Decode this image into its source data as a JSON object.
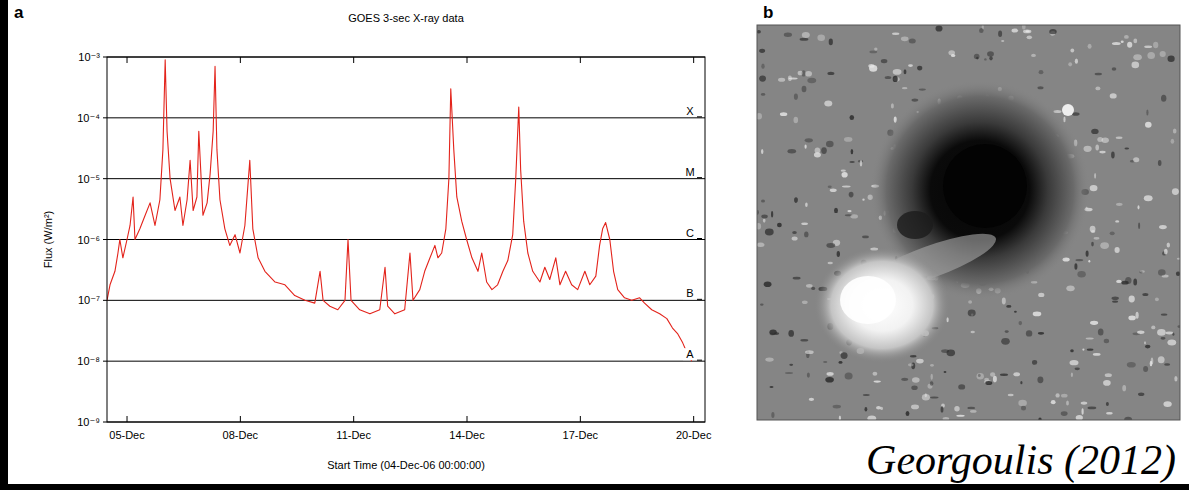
{
  "chart_data": {
    "type": "line",
    "title": "GOES 3-sec X-ray data",
    "x_label": "Start Time (04-Dec-06 00:00:00)",
    "y_label": "Flux (W/m²)",
    "color": "#e3231b",
    "log": "y",
    "grid": true,
    "xlim": [
      0.47,
      16.3
    ],
    "xticks": [
      {
        "value": 1,
        "label": "05-Dec"
      },
      {
        "value": 4,
        "label": "08-Dec"
      },
      {
        "value": 7,
        "label": "11-Dec"
      },
      {
        "value": 10,
        "label": "14-Dec"
      },
      {
        "value": 13,
        "label": "17-Dec"
      },
      {
        "value": 16,
        "label": "20-Dec"
      }
    ],
    "ylim": [
      1e-09,
      0.001
    ],
    "yticks": [
      {
        "value": 1e-09,
        "label": "10⁻⁹"
      },
      {
        "value": 1e-08,
        "label": "10⁻⁸"
      },
      {
        "value": 1e-07,
        "label": "10⁻⁷"
      },
      {
        "value": 1e-06,
        "label": "10⁻⁶"
      },
      {
        "value": 1e-05,
        "label": "10⁻⁵"
      },
      {
        "value": 0.0001,
        "label": "10⁻⁴"
      },
      {
        "value": 0.001,
        "label": "10⁻³"
      }
    ],
    "annotations": [
      {
        "value": 0.0001,
        "label": "X"
      },
      {
        "value": 1e-05,
        "label": "M"
      },
      {
        "value": 1e-06,
        "label": "C"
      },
      {
        "value": 1e-07,
        "label": "B"
      },
      {
        "value": 1e-08,
        "label": "A"
      }
    ],
    "x": [
      0.47,
      0.55,
      0.68,
      0.76,
      0.81,
      0.89,
      1.0,
      1.08,
      1.16,
      1.21,
      1.34,
      1.48,
      1.61,
      1.74,
      1.87,
      1.95,
      2.01,
      2.06,
      2.14,
      2.27,
      2.4,
      2.48,
      2.59,
      2.67,
      2.75,
      2.85,
      2.9,
      3.01,
      3.12,
      3.2,
      3.28,
      3.33,
      3.38,
      3.46,
      3.59,
      3.72,
      3.86,
      3.99,
      4.12,
      4.25,
      4.33,
      4.47,
      4.65,
      4.92,
      5.18,
      5.44,
      5.71,
      5.97,
      6.11,
      6.19,
      6.37,
      6.58,
      6.77,
      6.85,
      6.93,
      7.16,
      7.43,
      7.69,
      7.83,
      7.9,
      8.09,
      8.35,
      8.49,
      8.57,
      8.75,
      8.88,
      9.02,
      9.15,
      9.23,
      9.33,
      9.44,
      9.52,
      9.57,
      9.65,
      9.73,
      9.86,
      9.99,
      10.13,
      10.29,
      10.39,
      10.52,
      10.66,
      10.81,
      10.95,
      11.08,
      11.21,
      11.29,
      11.37,
      11.42,
      11.5,
      11.61,
      11.74,
      11.93,
      12.06,
      12.19,
      12.35,
      12.46,
      12.61,
      12.77,
      12.93,
      13.12,
      13.25,
      13.41,
      13.51,
      13.59,
      13.67,
      13.78,
      13.88,
      13.99,
      14.17,
      14.36,
      14.57,
      14.7,
      14.89,
      15.1,
      15.29,
      15.44,
      15.58,
      15.71,
      15.84,
      15.95
    ],
    "values": [
      1e-07,
      1.8e-07,
      3e-07,
      6e-07,
      1e-06,
      5e-07,
      1e-06,
      1.7e-06,
      5e-06,
      1e-06,
      1.5e-06,
      2.5e-06,
      4e-06,
      1.7e-06,
      4.5e-06,
      3e-05,
      0.0009,
      6e-05,
      1e-05,
      3e-06,
      5e-06,
      1.7e-06,
      4.5e-06,
      2e-05,
      3e-06,
      5e-06,
      6e-05,
      2.5e-06,
      4e-06,
      1.2e-05,
      6e-05,
      0.0007,
      3e-05,
      4.5e-06,
      1.5e-06,
      8e-07,
      1.2e-06,
      6e-07,
      1.7e-06,
      2e-05,
      1.5e-06,
      5e-07,
      3e-07,
      2e-07,
      1.8e-07,
      1.2e-07,
      1e-07,
      9e-08,
      3e-07,
      1e-07,
      8e-08,
      7e-08,
      1e-07,
      1e-06,
      1e-07,
      7e-08,
      6e-08,
      7e-08,
      3.5e-07,
      8e-08,
      6e-08,
      7e-08,
      6e-07,
      1e-07,
      1.5e-07,
      3e-07,
      5e-07,
      8e-07,
      5e-07,
      6e-07,
      1.5e-06,
      1e-05,
      0.0003,
      3e-05,
      5e-06,
      2e-06,
      1e-06,
      5e-07,
      3e-07,
      6e-07,
      2e-07,
      1.5e-07,
      1.8e-07,
      3e-07,
      4.5e-07,
      1.2e-06,
      1e-05,
      0.00015,
      1.4e-05,
      2e-06,
      6e-07,
      3e-07,
      2e-07,
      3.5e-07,
      2.2e-07,
      5e-07,
      1.8e-07,
      3e-07,
      1.8e-07,
      1.5e-07,
      3e-07,
      1.8e-07,
      2.5e-07,
      8e-07,
      1.5e-06,
      1.9e-06,
      1e-06,
      3e-07,
      1.5e-07,
      1.1e-07,
      1e-07,
      1.1e-07,
      9e-08,
      7e-08,
      6e-08,
      5e-08,
      3.5e-08,
      2.8e-08,
      2e-08,
      1.3e-08,
      1e-08
    ]
  },
  "figure": {
    "panel_letters": [
      "a",
      "b"
    ],
    "credit": "Georgoulis (2012)"
  }
}
